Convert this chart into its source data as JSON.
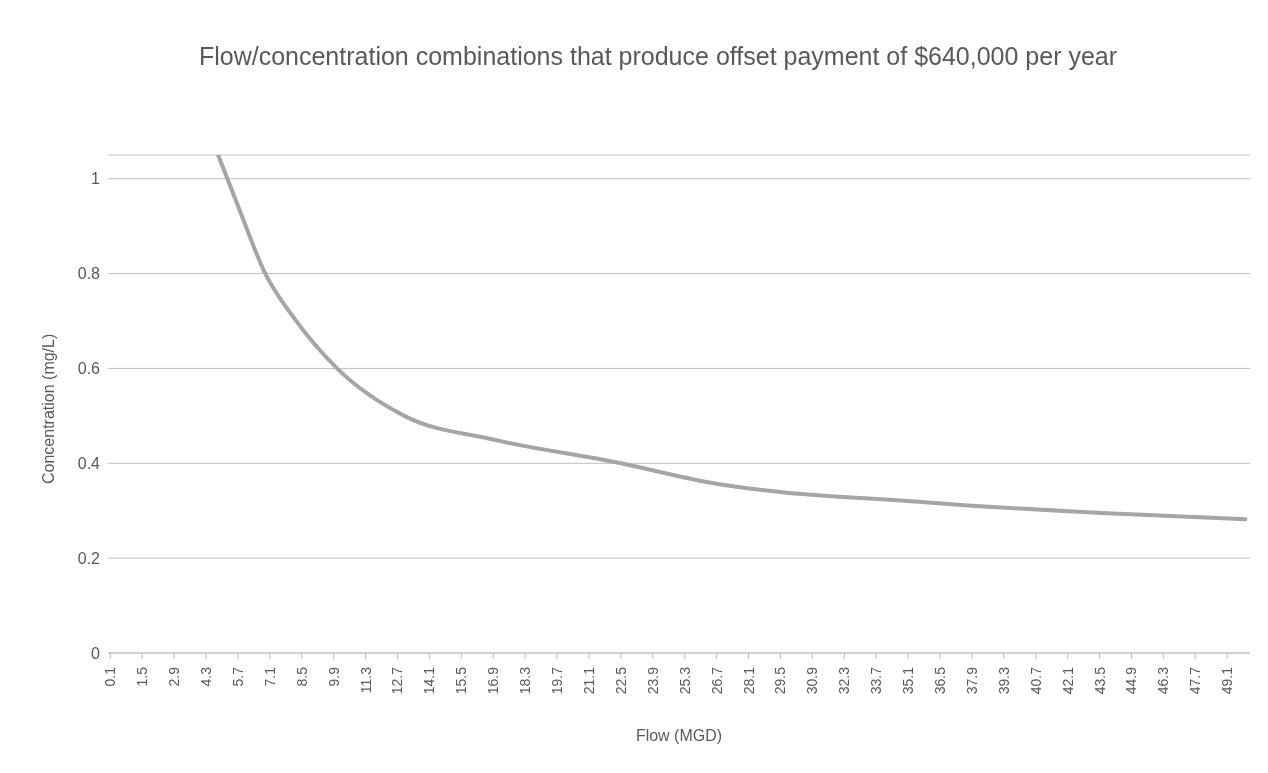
{
  "chart_data": {
    "type": "line",
    "title": "Flow/concentration combinations that produce offset payment of $640,000 per year",
    "xlabel": "Flow (MGD)",
    "ylabel": "Concentration (mg/L)",
    "x": [
      4.83,
      5.7,
      6.9,
      8.15,
      10.05,
      13.0,
      16.9,
      22.5,
      26.2,
      35.8,
      43.6,
      49.9
    ],
    "series": [
      {
        "color": "#a5a5a5",
        "values": [
          1.05,
          0.943,
          0.8,
          0.707,
          0.6,
          0.5,
          0.45,
          0.4,
          0.361,
          0.318,
          0.295,
          0.282
        ]
      }
    ],
    "xlim": [
      0,
      50.1
    ],
    "xticks": [
      0.1,
      1.5,
      2.9,
      4.3,
      5.7,
      7.1,
      8.5,
      9.9,
      11.3,
      12.7,
      14.1,
      15.5,
      16.9,
      18.3,
      19.7,
      21.1,
      22.5,
      23.9,
      25.3,
      26.7,
      28.1,
      29.5,
      30.9,
      32.3,
      33.7,
      35.1,
      36.5,
      37.9,
      39.3,
      40.7,
      42.1,
      43.5,
      44.9,
      46.3,
      47.7,
      49.1
    ],
    "ylim": [
      0,
      1.05
    ],
    "yticks": [
      0,
      0.2,
      0.4,
      0.6,
      0.8,
      1
    ],
    "grid": "y",
    "marker": "none",
    "line_style": "solid"
  }
}
